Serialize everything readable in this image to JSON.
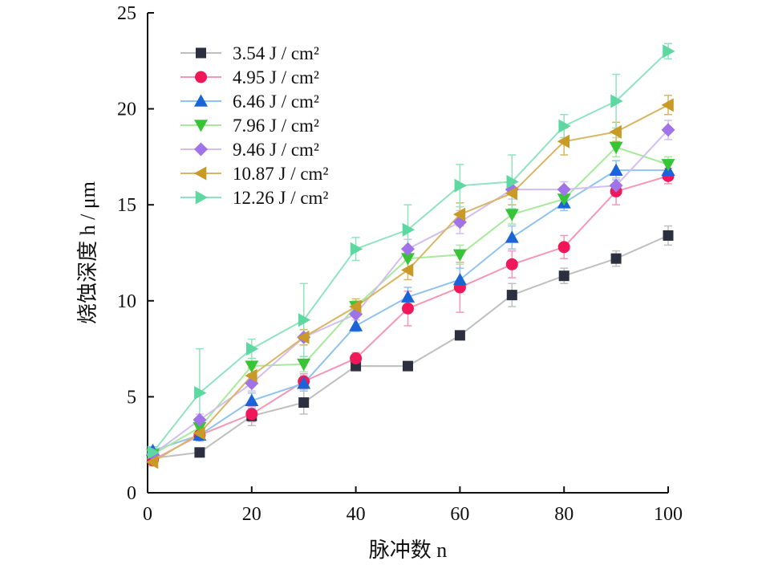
{
  "chart_data": {
    "type": "line",
    "title": "",
    "xlabel": "脉冲数 n",
    "ylabel": "烧蚀深度 h / μm",
    "xlim": [
      0,
      100
    ],
    "ylim": [
      0,
      25
    ],
    "xticks": [
      0,
      20,
      40,
      60,
      80,
      100
    ],
    "yticks": [
      0,
      5,
      10,
      15,
      20,
      25
    ],
    "grid": false,
    "legend_position": "top-left",
    "x": [
      1,
      10,
      20,
      30,
      40,
      50,
      60,
      70,
      80,
      90,
      100
    ],
    "series": [
      {
        "name": "3.54 J / cm²",
        "marker": "square",
        "marker_color": "#2b2f3f",
        "line_color": "#bfbfbf",
        "values": [
          1.8,
          2.1,
          4.0,
          4.7,
          6.6,
          6.6,
          8.2,
          10.3,
          11.3,
          12.2,
          13.4
        ],
        "errors": [
          0.2,
          0.2,
          0.5,
          0.6,
          0.2,
          0.2,
          0.2,
          0.6,
          0.4,
          0.4,
          0.5
        ]
      },
      {
        "name": "4.95 J / cm²",
        "marker": "circle",
        "marker_color": "#f0185a",
        "line_color": "#f597b5",
        "values": [
          1.7,
          3.0,
          4.1,
          5.8,
          7.0,
          9.6,
          10.7,
          11.9,
          12.8,
          15.7,
          16.5
        ],
        "errors": [
          0.2,
          0.3,
          0.4,
          0.4,
          0.3,
          0.9,
          1.3,
          0.7,
          0.6,
          0.7,
          0.4
        ]
      },
      {
        "name": "6.46 J / cm²",
        "marker": "triangle-up",
        "marker_color": "#1b64d8",
        "line_color": "#8fc3f0",
        "values": [
          2.2,
          3.0,
          4.8,
          5.7,
          8.7,
          10.2,
          11.1,
          13.3,
          15.1,
          16.8,
          16.8
        ],
        "errors": [
          0.2,
          0.3,
          0.4,
          0.4,
          0.3,
          0.5,
          0.6,
          0.6,
          0.4,
          0.5,
          0.4
        ]
      },
      {
        "name": "7.96 J / cm²",
        "marker": "triangle-down",
        "marker_color": "#37c537",
        "line_color": "#a6ea9c",
        "values": [
          2.0,
          3.4,
          6.6,
          6.7,
          9.7,
          12.2,
          12.4,
          14.5,
          15.3,
          18.0,
          17.1
        ],
        "errors": [
          0.2,
          0.4,
          0.4,
          0.4,
          0.3,
          0.6,
          0.5,
          0.5,
          0.4,
          0.5,
          0.4
        ]
      },
      {
        "name": "9.46 J / cm²",
        "marker": "diamond",
        "marker_color": "#a173e8",
        "line_color": "#d2bef2",
        "values": [
          2.0,
          3.8,
          5.7,
          8.1,
          9.3,
          12.7,
          14.1,
          15.8,
          15.8,
          16.0,
          18.9
        ],
        "errors": [
          0.2,
          0.3,
          0.4,
          0.4,
          0.3,
          0.5,
          0.6,
          0.5,
          0.4,
          0.4,
          0.5
        ]
      },
      {
        "name": "10.87 J / cm²",
        "marker": "triangle-left",
        "marker_color": "#c99a25",
        "line_color": "#d9b663",
        "values": [
          1.6,
          3.1,
          6.1,
          8.1,
          9.7,
          11.6,
          14.5,
          15.6,
          18.3,
          18.8,
          20.2
        ],
        "errors": [
          0.2,
          0.3,
          0.4,
          0.4,
          0.4,
          0.5,
          0.6,
          0.6,
          0.7,
          0.5,
          0.5
        ]
      },
      {
        "name": "12.26 J / cm²",
        "marker": "triangle-right",
        "marker_color": "#5cd8a0",
        "line_color": "#8fe4bf",
        "values": [
          2.1,
          5.2,
          7.5,
          9.0,
          12.7,
          13.7,
          16.0,
          16.2,
          19.1,
          20.4,
          23.0
        ],
        "errors": [
          0.2,
          2.3,
          0.5,
          1.9,
          0.6,
          1.3,
          1.1,
          1.4,
          0.6,
          1.4,
          0.4
        ]
      }
    ]
  }
}
